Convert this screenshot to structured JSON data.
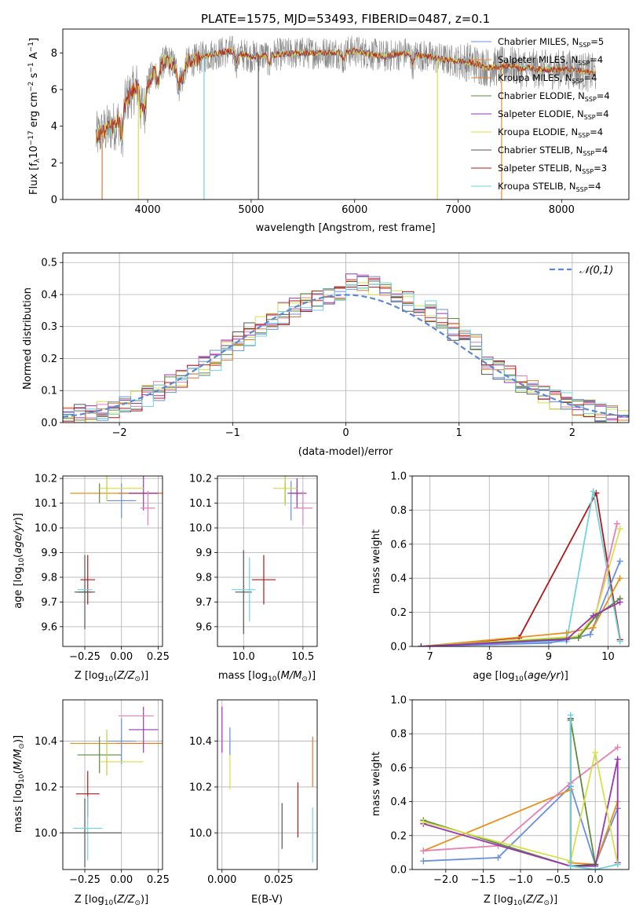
{
  "figure": {
    "title": "PLATE=1575, MJD=53493, FIBERID=0487, z=0.1"
  },
  "colors": {
    "Chabrier MILES": "#6a8fdc",
    "Salpeter MILES": "#e8901c",
    "Kroupa MILES": "#e07a2a",
    "Chabrier ELODIE": "#5d8a3a",
    "Salpeter ELODIE": "#9a36b5",
    "Kroupa ELODIE": "#d7e04a",
    "Chabrier STELIB": "#555555",
    "Salpeter STELIB": "#b01818",
    "Kroupa STELIB": "#6ed4e0",
    "extra1": "#e67fb7",
    "extra2": "#b5d334",
    "gauss": "#5b87d6",
    "data": "#888888"
  },
  "chart_data": [
    {
      "id": "spectrum",
      "type": "line",
      "title": "PLATE=1575, MJD=53493, FIBERID=0487, z=0.1",
      "xlabel": "wavelength [Angstrom, rest frame]",
      "ylabel": "Flux [f",
      "xlim": [
        3180,
        8650
      ],
      "ylim": [
        0,
        9.3
      ],
      "xticks": [
        4000,
        5000,
        6000,
        7000,
        8000
      ],
      "yticks": [
        0,
        2,
        4,
        6,
        8
      ],
      "legend_position": "right",
      "legend": [
        {
          "name": "Chabrier MILES",
          "n": "5"
        },
        {
          "name": "Salpeter MILES",
          "n": "4"
        },
        {
          "name": "Kroupa MILES",
          "n": "4"
        },
        {
          "name": "Chabrier ELODIE",
          "n": "4"
        },
        {
          "name": "Salpeter ELODIE",
          "n": "4"
        },
        {
          "name": "Kroupa ELODIE",
          "n": "4"
        },
        {
          "name": "Chabrier STELIB",
          "n": "4"
        },
        {
          "name": "Salpeter STELIB",
          "n": "3"
        },
        {
          "name": "Kroupa STELIB",
          "n": "4"
        }
      ],
      "continuum": [
        [
          3500,
          3.4
        ],
        [
          3600,
          3.8
        ],
        [
          3700,
          4.1
        ],
        [
          3800,
          5.5
        ],
        [
          3900,
          6.2
        ],
        [
          4000,
          6.3
        ],
        [
          4100,
          7.3
        ],
        [
          4200,
          7.6
        ],
        [
          4300,
          7.1
        ],
        [
          4400,
          7.5
        ],
        [
          4600,
          7.9
        ],
        [
          4800,
          8.1
        ],
        [
          5000,
          7.8
        ],
        [
          5200,
          7.9
        ],
        [
          5500,
          8.0
        ],
        [
          5800,
          8.0
        ],
        [
          6000,
          8.1
        ],
        [
          6300,
          7.8
        ],
        [
          6500,
          8.0
        ],
        [
          6700,
          7.8
        ],
        [
          6900,
          7.6
        ],
        [
          7100,
          7.5
        ],
        [
          7300,
          7.2
        ],
        [
          7500,
          7.3
        ],
        [
          7800,
          7.1
        ],
        [
          8100,
          7.1
        ],
        [
          8300,
          6.9
        ]
      ],
      "dips": [
        [
          3750,
          3.3
        ],
        [
          3935,
          4.9
        ],
        [
          3970,
          5.0
        ],
        [
          4102,
          6.3
        ],
        [
          4300,
          6.1
        ],
        [
          4340,
          6.6
        ],
        [
          4861,
          7.5
        ],
        [
          5175,
          7.4
        ],
        [
          5890,
          7.6
        ],
        [
          6563,
          7.4
        ],
        [
          7600,
          7.1
        ]
      ]
    },
    {
      "id": "residual_hist",
      "type": "bar",
      "xlabel": "(data-model)/error",
      "ylabel": "Normed distribution",
      "xlim": [
        -2.5,
        2.5
      ],
      "ylim": [
        0,
        0.53
      ],
      "xticks": [
        -2,
        -1,
        0,
        1,
        2
      ],
      "yticks": [
        0.0,
        0.1,
        0.2,
        0.3,
        0.4,
        0.5
      ],
      "bin_width": 0.1,
      "legend": "𝒩(0,1)",
      "legend_position": "top-right"
    },
    {
      "id": "age_vs_Z",
      "type": "scatter",
      "xlabel": "Z [log",
      "ylabel": "age  [log",
      "xlim": [
        -0.4,
        0.28
      ],
      "ylim": [
        9.52,
        10.21
      ],
      "xticks": [
        -0.25,
        0.0,
        0.25
      ],
      "xtick_labels": [
        "−0.25",
        "0.00",
        "0.25"
      ],
      "yticks": [
        9.6,
        9.7,
        9.8,
        9.9,
        10.0,
        10.1,
        10.2
      ],
      "points": [
        {
          "series": "Chabrier MILES",
          "x": 0.0,
          "y": 10.11,
          "xerr": 0.1,
          "yerr": 0.07
        },
        {
          "series": "Salpeter MILES",
          "x": 0.0,
          "y": 10.14,
          "xerr": 0.35,
          "yerr": 0.0
        },
        {
          "series": "Kroupa MILES",
          "x": 0.13,
          "y": 10.14,
          "xerr": 0.15,
          "yerr": 0.0
        },
        {
          "series": "Chabrier ELODIE",
          "x": -0.15,
          "y": 10.14,
          "xerr": 0.0,
          "yerr": 0.04
        },
        {
          "series": "Salpeter ELODIE",
          "x": 0.15,
          "y": 10.14,
          "xerr": 0.1,
          "yerr": 0.07
        },
        {
          "series": "Kroupa ELODIE",
          "x": 0.0,
          "y": 10.16,
          "xerr": 0.15,
          "yerr": 0.0
        },
        {
          "series": "Chabrier STELIB",
          "x": -0.25,
          "y": 9.74,
          "xerr": 0.05,
          "yerr": 0.15
        },
        {
          "series": "Salpeter STELIB",
          "x": -0.23,
          "y": 9.79,
          "xerr": 0.05,
          "yerr": 0.1
        },
        {
          "series": "Kroupa STELIB",
          "x": -0.25,
          "y": 9.75,
          "xerr": 0.05,
          "yerr": 0.0
        },
        {
          "series": "extra1",
          "x": 0.18,
          "y": 10.08,
          "xerr": 0.05,
          "yerr": 0.07
        },
        {
          "series": "extra2",
          "x": -0.1,
          "y": 10.16,
          "xerr": 0.0,
          "yerr": 0.05
        },
        {
          "series": "Chabrier STELIB",
          "x": -0.25,
          "y": 9.74,
          "xerr": 0.07,
          "yerr": 0.0
        }
      ]
    },
    {
      "id": "age_vs_mass",
      "type": "scatter",
      "xlabel": "mass [log",
      "ylabel": "",
      "xlim": [
        9.78,
        10.62
      ],
      "ylim": [
        9.52,
        10.21
      ],
      "xticks": [
        10.0,
        10.5
      ],
      "yticks": [
        9.6,
        9.7,
        9.8,
        9.9,
        10.0,
        10.1,
        10.2
      ],
      "points": [
        {
          "series": "Chabrier MILES",
          "x": 10.4,
          "y": 10.11,
          "xerr": 0.0,
          "yerr": 0.08
        },
        {
          "series": "Salpeter MILES",
          "x": 10.45,
          "y": 10.14,
          "xerr": 0.0,
          "yerr": 0.03
        },
        {
          "series": "Kroupa MILES",
          "x": 10.45,
          "y": 10.14,
          "xerr": 0.05,
          "yerr": 0.0
        },
        {
          "series": "Chabrier ELODIE",
          "x": 10.35,
          "y": 10.14,
          "xerr": 0.0,
          "yerr": 0.04
        },
        {
          "series": "Salpeter ELODIE",
          "x": 10.45,
          "y": 10.14,
          "xerr": 0.08,
          "yerr": 0.06
        },
        {
          "series": "Kroupa ELODIE",
          "x": 10.35,
          "y": 10.16,
          "xerr": 0.1,
          "yerr": 0.0
        },
        {
          "series": "Chabrier STELIB",
          "x": 10.0,
          "y": 9.74,
          "xerr": 0.07,
          "yerr": 0.17
        },
        {
          "series": "Salpeter STELIB",
          "x": 10.17,
          "y": 9.79,
          "xerr": 0.1,
          "yerr": 0.1
        },
        {
          "series": "Kroupa STELIB",
          "x": 10.0,
          "y": 9.75,
          "xerr": 0.1,
          "yerr": 0.0
        },
        {
          "series": "extra1",
          "x": 10.5,
          "y": 10.08,
          "xerr": 0.08,
          "yerr": 0.07
        },
        {
          "series": "extra2",
          "x": 10.35,
          "y": 10.16,
          "xerr": 0.0,
          "yerr": 0.07
        },
        {
          "series": "Kroupa STELIB",
          "x": 10.05,
          "y": 9.75,
          "xerr": 0.0,
          "yerr": 0.13
        }
      ]
    },
    {
      "id": "mass_weight_vs_age",
      "type": "line",
      "xlabel": "age  [log",
      "ylabel": "mass weight",
      "xlim": [
        6.7,
        10.35
      ],
      "ylim": [
        0,
        1.0
      ],
      "xticks": [
        7,
        8,
        9,
        10
      ],
      "yticks": [
        0.0,
        0.2,
        0.4,
        0.6,
        0.8,
        1.0
      ],
      "series": [
        {
          "name": "Salpeter STELIB",
          "x": [
            6.85,
            8.5,
            9.8,
            10.2
          ],
          "y": [
            0.0,
            0.05,
            0.9,
            0.04
          ]
        },
        {
          "name": "Kroupa STELIB",
          "x": [
            6.85,
            9.3,
            9.75,
            10.2
          ],
          "y": [
            0.0,
            0.03,
            0.91,
            0.03
          ]
        },
        {
          "name": "extra1",
          "x": [
            6.85,
            9.5,
            9.8,
            10.15
          ],
          "y": [
            0.0,
            0.05,
            0.2,
            0.72
          ]
        },
        {
          "name": "Chabrier MILES",
          "x": [
            6.85,
            9.0,
            9.7,
            10.2
          ],
          "y": [
            0.0,
            0.02,
            0.07,
            0.5
          ]
        },
        {
          "name": "Salpeter MILES",
          "x": [
            6.85,
            9.3,
            9.75,
            10.2
          ],
          "y": [
            0.0,
            0.08,
            0.11,
            0.4
          ]
        },
        {
          "name": "Kroupa ELODIE",
          "x": [
            6.85,
            9.5,
            9.8,
            10.2
          ],
          "y": [
            0.0,
            0.06,
            0.2,
            0.69
          ]
        },
        {
          "name": "Chabrier ELODIE",
          "x": [
            6.85,
            9.5,
            9.8,
            10.2
          ],
          "y": [
            0.0,
            0.05,
            0.18,
            0.28
          ]
        },
        {
          "name": "Salpeter ELODIE",
          "x": [
            6.85,
            9.3,
            9.75,
            10.2
          ],
          "y": [
            0.0,
            0.04,
            0.18,
            0.26
          ]
        }
      ]
    },
    {
      "id": "mass_vs_Z",
      "type": "scatter",
      "xlabel": "Z [log",
      "ylabel": "mass [log",
      "xlim": [
        -0.4,
        0.28
      ],
      "ylim": [
        9.84,
        10.58
      ],
      "xticks": [
        -0.25,
        0.0,
        0.25
      ],
      "xtick_labels": [
        "−0.25",
        "0.00",
        "0.25"
      ],
      "yticks": [
        10.0,
        10.2,
        10.4
      ],
      "points": [
        {
          "series": "Chabrier MILES",
          "x": 0.0,
          "y": 10.4,
          "xerr": 0.1,
          "yerr": 0.1
        },
        {
          "series": "Salpeter MILES",
          "x": 0.0,
          "y": 10.39,
          "xerr": 0.35,
          "yerr": 0.0
        },
        {
          "series": "Kroupa MILES",
          "x": 0.12,
          "y": 10.39,
          "xerr": 0.15,
          "yerr": 0.0
        },
        {
          "series": "Chabrier ELODIE",
          "x": -0.15,
          "y": 10.34,
          "xerr": 0.15,
          "yerr": 0.08
        },
        {
          "series": "Salpeter ELODIE",
          "x": 0.15,
          "y": 10.45,
          "xerr": 0.1,
          "yerr": 0.1
        },
        {
          "series": "Kroupa ELODIE",
          "x": 0.0,
          "y": 10.31,
          "xerr": 0.15,
          "yerr": 0.0
        },
        {
          "series": "Chabrier STELIB",
          "x": -0.25,
          "y": 10.0,
          "xerr": 0.0,
          "yerr": 0.15
        },
        {
          "series": "Salpeter STELIB",
          "x": -0.23,
          "y": 10.17,
          "xerr": 0.08,
          "yerr": 0.1
        },
        {
          "series": "Kroupa STELIB",
          "x": -0.23,
          "y": 10.02,
          "xerr": 0.1,
          "yerr": 0.14
        },
        {
          "series": "extra1",
          "x": 0.1,
          "y": 10.51,
          "xerr": 0.12,
          "yerr": 0.0
        },
        {
          "series": "Chabrier STELIB",
          "x": -0.2,
          "y": 10.0,
          "xerr": 0.2,
          "yerr": 0.0
        },
        {
          "series": "extra2",
          "x": -0.1,
          "y": 10.35,
          "xerr": 0.0,
          "yerr": 0.1
        }
      ]
    },
    {
      "id": "mass_vs_ebv",
      "type": "scatter",
      "xlabel": "E(B-V)",
      "ylabel": "",
      "xlim": [
        -0.002,
        0.042
      ],
      "ylim": [
        9.84,
        10.58
      ],
      "xticks": [
        0.0,
        0.025
      ],
      "xtick_labels": [
        "0.000",
        "0.025"
      ],
      "yticks": [
        10.0,
        10.2,
        10.4
      ],
      "points": [
        {
          "series": "Salpeter ELODIE",
          "x": 0.0,
          "y": 10.45,
          "xerr": 0.0,
          "yerr": 0.1
        },
        {
          "series": "Kroupa ELODIE",
          "x": 0.0035,
          "y": 10.32,
          "xerr": 0.0,
          "yerr": 0.13
        },
        {
          "series": "Chabrier MILES",
          "x": 0.0035,
          "y": 10.4,
          "xerr": 0.0,
          "yerr": 0.06
        },
        {
          "series": "Chabrier STELIB",
          "x": 0.0265,
          "y": 10.03,
          "xerr": 0.0,
          "yerr": 0.1
        },
        {
          "series": "Salpeter STELIB",
          "x": 0.0335,
          "y": 10.1,
          "xerr": 0.0,
          "yerr": 0.12
        },
        {
          "series": "Kroupa MILES",
          "x": 0.04,
          "y": 10.31,
          "xerr": 0.0,
          "yerr": 0.11
        },
        {
          "series": "Kroupa STELIB",
          "x": 0.04,
          "y": 9.99,
          "xerr": 0.0,
          "yerr": 0.12
        }
      ]
    },
    {
      "id": "mass_weight_vs_Z",
      "type": "line",
      "xlabel": "Z [log",
      "ylabel": "mass weight",
      "xlim": [
        -2.45,
        0.45
      ],
      "ylim": [
        0,
        1.0
      ],
      "xticks": [
        -2.0,
        -1.5,
        -1.0,
        -0.5,
        0.0
      ],
      "xtick_labels": [
        "−2.0",
        "−1.5",
        "−1.0",
        "−0.5",
        "0.0"
      ],
      "yticks": [
        0.0,
        0.2,
        0.4,
        0.6,
        0.8,
        1.0
      ],
      "series": [
        {
          "name": "Chabrier MILES",
          "x": [
            -2.3,
            -1.3,
            -0.33,
            0.0,
            0.3
          ],
          "y": [
            0.05,
            0.07,
            0.49,
            0.03,
            0.36
          ]
        },
        {
          "name": "Salpeter MILES",
          "x": [
            -2.3,
            -0.33,
            -0.33,
            0.0,
            0.3
          ],
          "y": [
            0.11,
            0.47,
            0.04,
            0.03,
            0.4
          ]
        },
        {
          "name": "extra1",
          "x": [
            -2.3,
            -1.3,
            -0.33,
            0.3
          ],
          "y": [
            0.11,
            0.14,
            0.51,
            0.72
          ]
        },
        {
          "name": "Chabrier ELODIE",
          "x": [
            -2.3,
            -0.33,
            -0.33,
            0.0
          ],
          "y": [
            0.29,
            0.02,
            0.88,
            0.03
          ]
        },
        {
          "name": "Salpeter ELODIE",
          "x": [
            -2.3,
            -0.33,
            0.0,
            0.3,
            0.3
          ],
          "y": [
            0.27,
            0.02,
            0.02,
            0.65,
            0.04
          ]
        },
        {
          "name": "Kroupa ELODIE",
          "x": [
            -2.3,
            -0.33,
            0.0,
            0.3
          ],
          "y": [
            0.28,
            0.05,
            0.69,
            0.03
          ]
        },
        {
          "name": "Chabrier STELIB",
          "x": [
            -0.33,
            -0.33,
            0.0
          ],
          "y": [
            0.89,
            0.02,
            0.03
          ]
        },
        {
          "name": "Kroupa STELIB",
          "x": [
            -0.33,
            -0.33,
            0.0,
            0.3
          ],
          "y": [
            0.91,
            0.02,
            0.0,
            0.03
          ]
        }
      ]
    }
  ]
}
